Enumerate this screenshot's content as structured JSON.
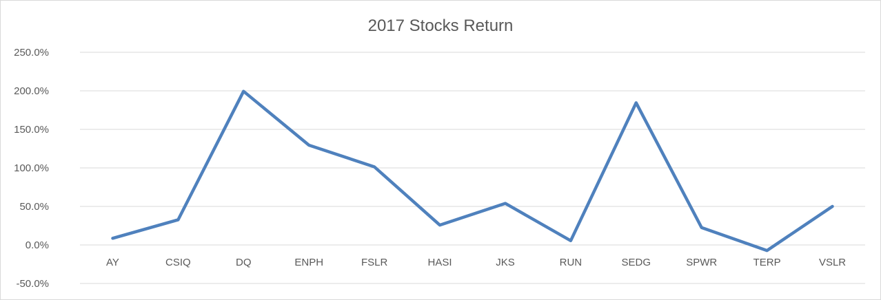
{
  "chart_data": {
    "type": "line",
    "title": "2017 Stocks Return",
    "xlabel": "",
    "ylabel": "",
    "categories": [
      "AY",
      "CSIQ",
      "DQ",
      "ENPH",
      "FSLR",
      "HASI",
      "JKS",
      "RUN",
      "SEDG",
      "SPWR",
      "TERP",
      "VSLR"
    ],
    "series": [
      {
        "values": [
          8.7,
          32.7,
          199.4,
          129.5,
          101.3,
          25.8,
          53.9,
          5.5,
          184.5,
          22.6,
          -7.2,
          50.0
        ]
      }
    ],
    "ylim": [
      -50,
      250
    ],
    "yticks": [
      250,
      200,
      150,
      100,
      50,
      0,
      -50
    ],
    "ytick_labels": [
      "250.0%",
      "200.0%",
      "150.0%",
      "100.0%",
      "50.0%",
      "0.0%",
      "-50.0%"
    ],
    "grid": true,
    "legend": "none",
    "colors": {
      "series": "#4f81bd",
      "grid": "#d9d9d9",
      "text": "#595959"
    }
  }
}
